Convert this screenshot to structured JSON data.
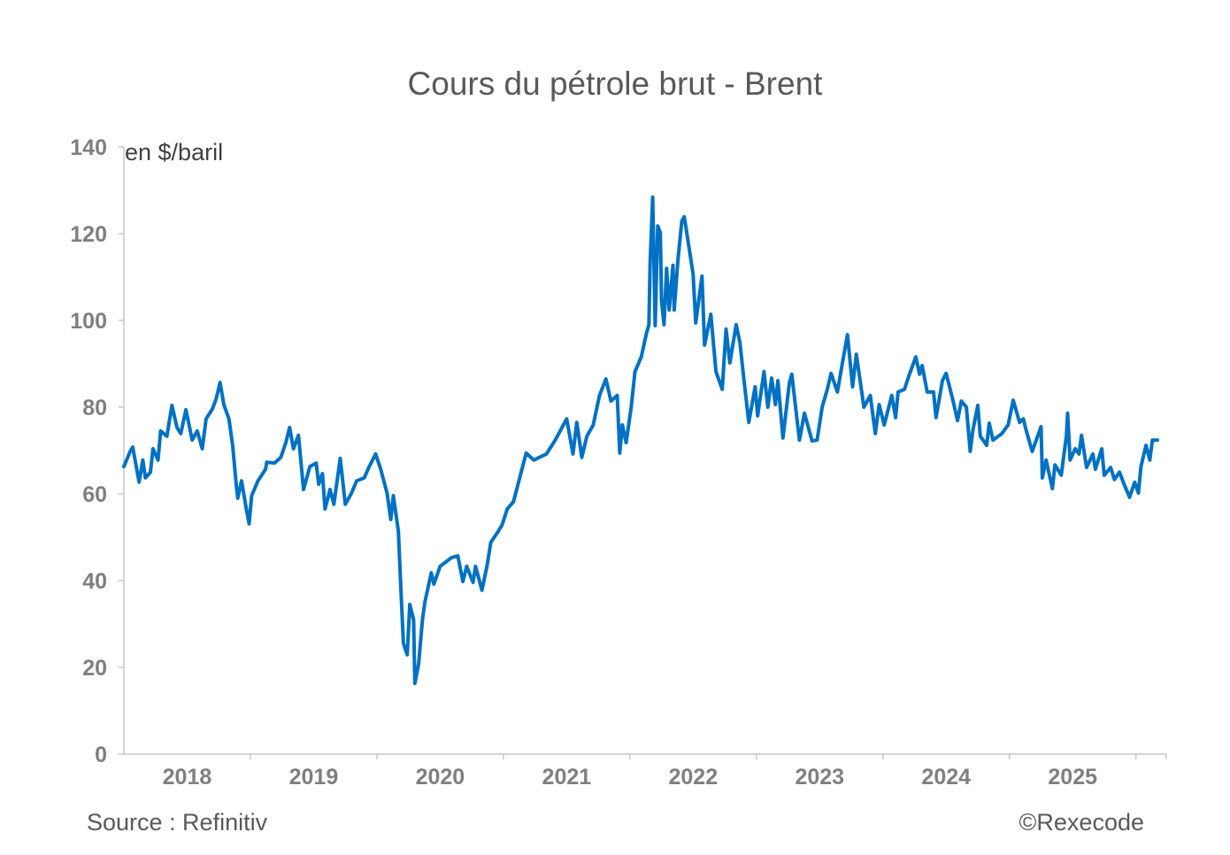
{
  "chart_data": {
    "type": "line",
    "title": "Cours du pétrole brut - Brent",
    "ylabel": "en $/baril",
    "xlabel": "",
    "ylim": [
      0,
      140
    ],
    "yticks": [
      0,
      20,
      40,
      60,
      80,
      100,
      120,
      140
    ],
    "xlim": [
      2018,
      2026.24
    ],
    "xtick_labels": [
      "2018",
      "2019",
      "2020",
      "2021",
      "2022",
      "2023",
      "2024",
      "2025"
    ],
    "grid": false,
    "legend": "none",
    "series": [
      {
        "color": "#0071C5",
        "x": [
          2018.0,
          2018.05,
          2018.07,
          2018.12,
          2018.15,
          2018.17,
          2018.21,
          2018.23,
          2018.27,
          2018.29,
          2018.34,
          2018.38,
          2018.42,
          2018.45,
          2018.49,
          2018.54,
          2018.58,
          2018.62,
          2018.65,
          2018.7,
          2018.73,
          2018.76,
          2018.79,
          2018.83,
          2018.86,
          2018.89,
          2018.9,
          2018.93,
          2018.97,
          2018.99,
          2019.01,
          2019.06,
          2019.12,
          2019.13,
          2019.19,
          2019.24,
          2019.28,
          2019.31,
          2019.34,
          2019.38,
          2019.42,
          2019.47,
          2019.52,
          2019.54,
          2019.57,
          2019.59,
          2019.63,
          2019.66,
          2019.71,
          2019.75,
          2019.8,
          2019.84,
          2019.9,
          2019.94,
          2019.99,
          2020.03,
          2020.08,
          2020.11,
          2020.13,
          2020.17,
          2020.19,
          2020.21,
          2020.24,
          2020.26,
          2020.29,
          2020.3,
          2020.33,
          2020.36,
          2020.38,
          2020.43,
          2020.45,
          2020.5,
          2020.59,
          2020.64,
          2020.68,
          2020.71,
          2020.76,
          2020.78,
          2020.83,
          2020.87,
          2020.9,
          2020.96,
          2020.99,
          2021.03,
          2021.08,
          2021.18,
          2021.24,
          2021.34,
          2021.41,
          2021.5,
          2021.55,
          2021.58,
          2021.62,
          2021.66,
          2021.71,
          2021.76,
          2021.81,
          2021.85,
          2021.9,
          2021.92,
          2021.94,
          2021.97,
          2022.01,
          2022.04,
          2022.09,
          2022.13,
          2022.15,
          2022.16,
          2022.18,
          2022.2,
          2022.22,
          2022.24,
          2022.25,
          2022.27,
          2022.29,
          2022.31,
          2022.34,
          2022.35,
          2022.38,
          2022.41,
          2022.43,
          2022.46,
          2022.5,
          2022.52,
          2022.57,
          2022.59,
          2022.64,
          2022.68,
          2022.73,
          2022.76,
          2022.79,
          2022.84,
          2022.87,
          2022.9,
          2022.94,
          2022.99,
          2023.01,
          2023.06,
          2023.09,
          2023.12,
          2023.15,
          2023.17,
          2023.21,
          2023.26,
          2023.28,
          2023.34,
          2023.38,
          2023.44,
          2023.48,
          2023.52,
          2023.56,
          2023.59,
          2023.64,
          2023.68,
          2023.72,
          2023.76,
          2023.79,
          2023.85,
          2023.9,
          2023.94,
          2023.97,
          2024.01,
          2024.07,
          2024.1,
          2024.12,
          2024.17,
          2024.21,
          2024.26,
          2024.29,
          2024.31,
          2024.35,
          2024.4,
          2024.42,
          2024.47,
          2024.5,
          2024.55,
          2024.59,
          2024.62,
          2024.66,
          2024.69,
          2024.71,
          2024.75,
          2024.77,
          2024.82,
          2024.84,
          2024.87,
          2024.94,
          2024.99,
          2025.03,
          2025.08,
          2025.11,
          2025.13,
          2025.18,
          2025.25,
          2025.26,
          2025.29,
          2025.34,
          2025.36,
          2025.41,
          2025.45,
          2025.46,
          2025.48,
          2025.52,
          2025.55,
          2025.57,
          2025.61,
          2025.66,
          2025.68,
          2025.73,
          2025.75,
          2025.8,
          2025.83,
          2025.87,
          2025.9,
          2025.95,
          2025.99,
          2026.02,
          2026.04,
          2026.08,
          2026.11,
          2026.13,
          2026.17
        ],
        "y": [
          66.3,
          69.8,
          70.8,
          62.7,
          67.8,
          63.7,
          65.0,
          70.4,
          67.8,
          74.5,
          73.3,
          80.4,
          75.3,
          73.9,
          79.4,
          72.4,
          74.5,
          70.4,
          77.3,
          79.6,
          82.0,
          85.7,
          80.6,
          77.3,
          71.2,
          61.6,
          59.0,
          63.0,
          56.1,
          53.1,
          59.6,
          63.0,
          65.7,
          67.3,
          67.1,
          68.4,
          71.8,
          75.3,
          70.4,
          73.5,
          61.0,
          66.3,
          67.1,
          62.2,
          64.7,
          56.5,
          61.0,
          57.6,
          68.2,
          57.6,
          60.2,
          63.0,
          63.7,
          66.3,
          69.2,
          65.7,
          60.2,
          54.1,
          59.6,
          51.4,
          37.8,
          25.5,
          22.9,
          34.5,
          31.0,
          16.3,
          20.8,
          31.0,
          35.1,
          41.8,
          39.2,
          43.3,
          45.3,
          45.7,
          39.8,
          43.3,
          39.6,
          43.3,
          37.8,
          43.3,
          48.8,
          51.4,
          52.9,
          56.5,
          58.2,
          69.4,
          67.8,
          69.2,
          72.4,
          77.3,
          69.2,
          76.5,
          68.4,
          73.3,
          75.9,
          82.7,
          86.5,
          81.4,
          82.7,
          69.4,
          75.9,
          71.8,
          80.0,
          88.2,
          91.6,
          96.9,
          99.0,
          113.3,
          128.4,
          98.8,
          121.8,
          120.2,
          104.5,
          99.0,
          112.0,
          102.4,
          112.7,
          102.4,
          114.1,
          122.9,
          123.9,
          118.2,
          110.6,
          99.4,
          110.2,
          94.3,
          101.4,
          88.2,
          84.1,
          98.0,
          90.2,
          99.0,
          94.9,
          86.7,
          76.5,
          84.7,
          78.0,
          88.2,
          80.0,
          86.7,
          80.6,
          86.1,
          72.9,
          85.5,
          87.6,
          72.4,
          78.6,
          72.2,
          72.4,
          80.0,
          84.1,
          87.8,
          83.5,
          90.2,
          96.7,
          84.7,
          92.2,
          80.0,
          82.7,
          73.9,
          80.6,
          75.9,
          82.7,
          77.6,
          83.5,
          84.1,
          87.6,
          91.6,
          87.6,
          89.6,
          83.5,
          83.5,
          77.6,
          86.1,
          87.8,
          82.0,
          76.9,
          81.4,
          80.0,
          69.8,
          74.5,
          80.4,
          73.3,
          71.2,
          76.3,
          72.4,
          73.9,
          75.9,
          81.6,
          76.5,
          77.3,
          74.9,
          69.8,
          75.5,
          63.7,
          67.8,
          61.2,
          66.7,
          64.3,
          73.3,
          78.6,
          67.8,
          70.4,
          69.2,
          73.5,
          66.1,
          69.2,
          65.7,
          70.4,
          64.3,
          66.1,
          63.3,
          65.0,
          62.7,
          59.2,
          62.7,
          60.2,
          66.3,
          71.2,
          67.8,
          72.4,
          72.4
        ]
      }
    ]
  },
  "footer": {
    "source": "Source : Refinitiv",
    "copyright": "©Rexecode"
  }
}
